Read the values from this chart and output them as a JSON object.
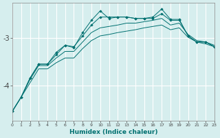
{
  "xlabel": "Humidex (Indice chaleur)",
  "background_color": "#d6eeee",
  "line_color": "#007070",
  "grid_color": "#ffffff",
  "x": [
    0,
    1,
    2,
    3,
    4,
    5,
    6,
    7,
    8,
    9,
    10,
    11,
    12,
    13,
    14,
    15,
    16,
    17,
    18,
    19,
    20,
    21,
    22,
    23
  ],
  "line_jagged": [
    -4.55,
    -4.25,
    -3.85,
    -3.55,
    -3.55,
    -3.35,
    -3.15,
    -3.2,
    -2.88,
    -2.62,
    -2.42,
    -2.58,
    -2.55,
    -2.55,
    -2.58,
    -2.58,
    -2.55,
    -2.38,
    -2.6,
    -2.6,
    -2.95,
    -3.08,
    -3.08,
    -3.18
  ],
  "line_smooth": [
    -4.55,
    -4.25,
    -3.85,
    -3.55,
    -3.55,
    -3.3,
    -3.15,
    -3.18,
    -2.95,
    -2.72,
    -2.55,
    -2.55,
    -2.55,
    -2.55,
    -2.58,
    -2.58,
    -2.58,
    -2.48,
    -2.62,
    -2.62,
    -2.95,
    -3.08,
    -3.08,
    -3.18
  ],
  "line_mid": [
    -4.55,
    -4.25,
    -3.88,
    -3.58,
    -3.58,
    -3.42,
    -3.28,
    -3.28,
    -3.08,
    -2.88,
    -2.78,
    -2.75,
    -2.72,
    -2.68,
    -2.68,
    -2.65,
    -2.62,
    -2.58,
    -2.72,
    -2.68,
    -2.92,
    -3.05,
    -3.08,
    -3.15
  ],
  "line_low": [
    -4.55,
    -4.25,
    -3.95,
    -3.65,
    -3.65,
    -3.52,
    -3.42,
    -3.42,
    -3.22,
    -3.05,
    -2.95,
    -2.92,
    -2.88,
    -2.85,
    -2.82,
    -2.78,
    -2.75,
    -2.72,
    -2.82,
    -2.78,
    -2.98,
    -3.08,
    -3.12,
    -3.18
  ],
  "ylim": [
    -4.75,
    -2.25
  ],
  "yticks": [
    -4,
    -3
  ],
  "xlim": [
    0,
    23
  ]
}
